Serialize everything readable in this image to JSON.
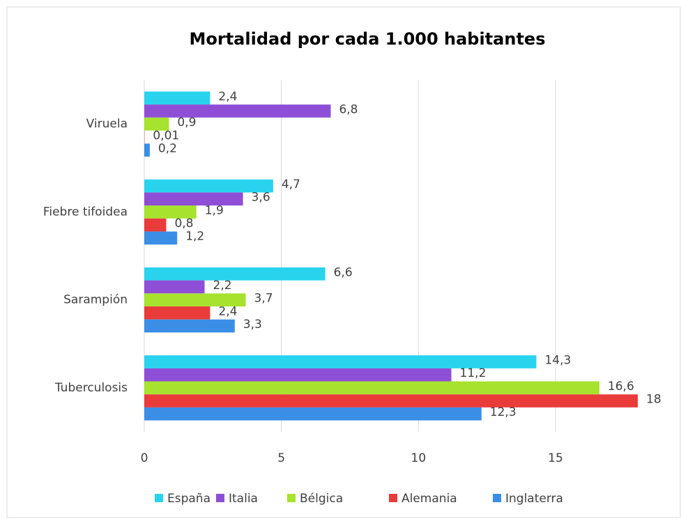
{
  "chart_data": {
    "type": "hbar",
    "title": "Mortalidad por cada 1.000 habitantes",
    "categories": [
      "Viruela",
      "Fiebre tifoidea",
      "Sarampión",
      "Tuberculosis"
    ],
    "series": [
      {
        "name": "España",
        "color": "#29d3ee",
        "values": [
          2.4,
          4.7,
          6.6,
          14.3
        ],
        "value_labels": [
          "2,4",
          "4,7",
          "6,6",
          "14,3"
        ]
      },
      {
        "name": "Italia",
        "color": "#8e4fd6",
        "values": [
          6.8,
          3.6,
          2.2,
          11.2
        ],
        "value_labels": [
          "6,8",
          "3,6",
          "2,2",
          "11,2"
        ]
      },
      {
        "name": "Bélgica",
        "color": "#a6e22e",
        "values": [
          0.9,
          1.9,
          3.7,
          16.6
        ],
        "value_labels": [
          "0,9",
          "1,9",
          "3,7",
          "16,6"
        ]
      },
      {
        "name": "Alemania",
        "color": "#ea3b3b",
        "values": [
          0.01,
          0.8,
          2.4,
          18
        ],
        "value_labels": [
          "0,01",
          "0,8",
          "2,4",
          "18"
        ]
      },
      {
        "name": "Inglaterra",
        "color": "#3a8ee6",
        "values": [
          0.2,
          1.2,
          3.3,
          12.3
        ],
        "value_labels": [
          "0,2",
          "1,2",
          "3,3",
          "12,3"
        ]
      }
    ],
    "xlim": [
      0,
      18
    ],
    "xticks": [
      0,
      5,
      10,
      15
    ],
    "grid": true,
    "legend": "bottom"
  }
}
